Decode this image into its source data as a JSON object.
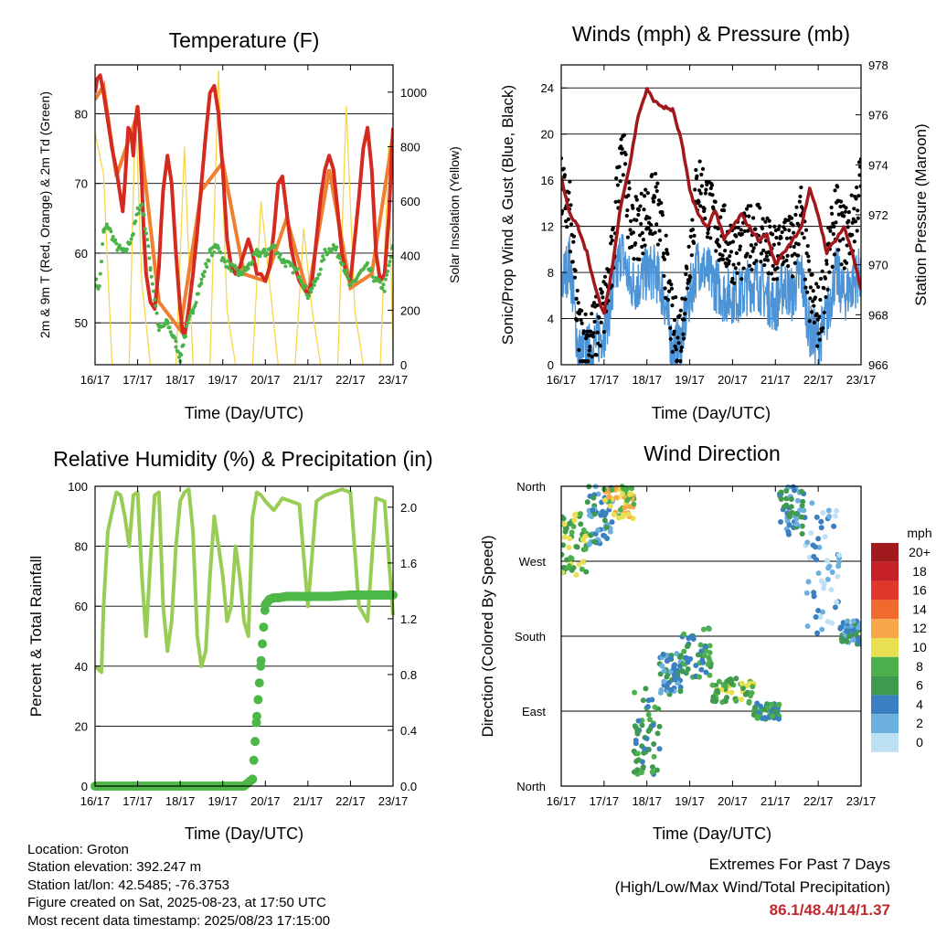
{
  "panels": {
    "temperature": {
      "title": "Temperature (F)",
      "xlabel": "Time (Day/UTC)",
      "ylabel_left": "2m & 9m T (Red, Orange) & 2m Td (Green)",
      "ylabel_right": "Solar Insolation (Yellow)"
    },
    "winds": {
      "title": "Winds (mph) & Pressure (mb)",
      "xlabel": "Time (Day/UTC)",
      "ylabel_left": "Sonic/Prop Wind & Gust (Blue, Black)",
      "ylabel_right": "Station Pressure (Maroon)"
    },
    "humidity": {
      "title": "Relative Humidity (%) & Precipitation (in)",
      "xlabel": "Time (Day/UTC)",
      "ylabel_left": "Percent & Total Rainfall"
    },
    "direction": {
      "title": "Wind Direction",
      "xlabel": "Time (Day/UTC)",
      "ylabel_left": "Direction (Colored By Speed)",
      "legend_title": "mph"
    }
  },
  "footer": {
    "location": "Location: Groton",
    "elevation": "Station elevation: 392.247 m",
    "latlon": "Station lat/lon: 42.5485; -76.3753",
    "created": "Figure created on Sat, 2025-08-23, at 17:50 UTC",
    "recent": "Most recent data timestamp: 2025/08/23 17:15:00"
  },
  "extremes": {
    "line1": "Extremes For Past 7 Days",
    "line2": "(High/Low/Max Wind/Total Precipitation)",
    "values": "86.1/48.4/14/1.37"
  },
  "colors": {
    "temp2m": "#d42a20",
    "temp9m": "#f08030",
    "dewpoint": "#4cb34a",
    "solar": "#f7d74a",
    "wind": "#4d94d6",
    "gust": "#000000",
    "pressure": "#a3171c",
    "rh": "#99cc55",
    "precip": "#4cb848",
    "extremes": "#c1272d"
  },
  "chart_data": [
    {
      "type": "line",
      "title": "Temperature (F)",
      "xlabel": "Time (Day/UTC)",
      "ylabel": "2m & 9m T (Red, Orange) & 2m Td (Green)",
      "y2label": "Solar Insolation (Yellow)",
      "xticks": [
        "16/17",
        "17/17",
        "18/17",
        "19/17",
        "20/17",
        "21/17",
        "22/17",
        "23/17"
      ],
      "xlim": [
        0,
        7
      ],
      "ylim": [
        44,
        87
      ],
      "yticks": [
        50,
        60,
        70,
        80
      ],
      "y2lim": [
        0,
        1100
      ],
      "y2ticks": [
        0,
        200,
        400,
        600,
        800,
        1000
      ],
      "grid": "horizontal",
      "series": [
        {
          "name": "2m T",
          "axis": "left",
          "x": [
            0,
            0.05,
            0.12,
            0.2,
            0.3,
            0.4,
            0.5,
            0.6,
            0.65,
            0.7,
            0.78,
            0.85,
            0.9,
            0.95,
            1.0,
            1.05,
            1.1,
            1.15,
            1.2,
            1.3,
            1.4,
            1.5,
            1.55,
            1.6,
            1.7,
            1.8,
            1.9,
            2.0,
            2.05,
            2.1,
            2.2,
            2.3,
            2.4,
            2.5,
            2.6,
            2.7,
            2.8,
            2.9,
            3.0,
            3.1,
            3.2,
            3.3,
            3.4,
            3.5,
            3.6,
            3.7,
            3.8,
            3.9,
            4.0,
            4.1,
            4.2,
            4.3,
            4.4,
            4.5,
            4.6,
            4.7,
            4.8,
            4.9,
            5.0,
            5.1,
            5.2,
            5.3,
            5.4,
            5.5,
            5.6,
            5.7,
            5.8,
            5.9,
            6.0,
            6.1,
            6.2,
            6.3,
            6.4,
            6.5,
            6.6,
            6.7,
            6.8,
            6.9,
            7.0
          ],
          "values": [
            83,
            85,
            85.5,
            83,
            79,
            75,
            72,
            68,
            66,
            70,
            78,
            77,
            74,
            79,
            81,
            77,
            70,
            62,
            57,
            53,
            52,
            58,
            64,
            69,
            74,
            70,
            60,
            52,
            49,
            48,
            52,
            57,
            63,
            70,
            77,
            83,
            84,
            80,
            72,
            62,
            58,
            57,
            58,
            60,
            62,
            60,
            57,
            57,
            56,
            58,
            63,
            70,
            71,
            66,
            61,
            58,
            56,
            55,
            54,
            56,
            62,
            68,
            72,
            74,
            72,
            66,
            60,
            57,
            56,
            62,
            68,
            75,
            78,
            72,
            60,
            56,
            57,
            65,
            78
          ]
        },
        {
          "name": "9m T",
          "axis": "left",
          "x": [
            0,
            0.2,
            0.5,
            1.0,
            1.5,
            2.0,
            2.5,
            3.0,
            3.5,
            4.0,
            4.5,
            5.0,
            5.5,
            6.0,
            6.5,
            7.0
          ],
          "values": [
            82,
            84,
            71,
            80,
            53,
            49,
            69,
            73,
            57,
            56,
            65,
            54,
            72,
            55,
            57,
            77
          ]
        },
        {
          "name": "2m Td",
          "axis": "left",
          "x": [
            0,
            0.1,
            0.2,
            0.3,
            0.5,
            0.7,
            0.9,
            1.0,
            1.1,
            1.2,
            1.3,
            1.5,
            1.7,
            1.9,
            2.0,
            2.1,
            2.3,
            2.5,
            2.7,
            2.9,
            3.0,
            3.2,
            3.4,
            3.6,
            3.8,
            4.0,
            4.2,
            4.4,
            4.6,
            4.8,
            5.0,
            5.2,
            5.4,
            5.6,
            5.8,
            6.0,
            6.2,
            6.4,
            6.6,
            6.8,
            7.0
          ],
          "values": [
            56,
            55,
            63,
            64,
            61,
            60,
            63,
            66,
            67,
            63,
            58,
            49,
            50,
            47,
            45,
            48,
            52,
            56,
            60,
            61,
            59,
            58,
            57,
            58,
            60,
            60,
            61,
            59,
            58,
            57,
            54,
            56,
            60,
            61,
            59,
            55,
            57,
            58,
            56,
            55,
            61
          ]
        },
        {
          "name": "Solar Insolation",
          "axis": "right",
          "x": [
            0,
            0.2,
            0.4,
            0.6,
            0.8,
            0.95,
            1.1,
            1.3,
            1.5,
            1.7,
            1.9,
            2.1,
            2.3,
            2.5,
            2.7,
            2.9,
            3.1,
            3.3,
            3.5,
            3.7,
            3.9,
            4.1,
            4.3,
            4.5,
            4.7,
            4.9,
            5.1,
            5.3,
            5.5,
            5.7,
            5.9,
            6.1,
            6.3,
            6.5,
            6.7,
            6.9,
            7.0
          ],
          "values": [
            850,
            700,
            0,
            0,
            0,
            950,
            300,
            0,
            0,
            0,
            0,
            800,
            0,
            0,
            0,
            1080,
            200,
            0,
            0,
            0,
            600,
            300,
            0,
            0,
            0,
            500,
            200,
            0,
            0,
            0,
            950,
            200,
            0,
            0,
            0,
            800,
            0
          ]
        }
      ]
    },
    {
      "type": "line",
      "title": "Winds (mph) & Pressure (mb)",
      "xlabel": "Time (Day/UTC)",
      "ylabel": "Sonic/Prop Wind & Gust (Blue, Black)",
      "y2label": "Station Pressure (Maroon)",
      "xticks": [
        "16/17",
        "17/17",
        "18/17",
        "19/17",
        "20/17",
        "21/17",
        "22/17",
        "23/17"
      ],
      "xlim": [
        0,
        7
      ],
      "ylim": [
        0,
        26
      ],
      "yticks": [
        0,
        4,
        8,
        12,
        16,
        20,
        24
      ],
      "y2lim": [
        966,
        978
      ],
      "y2ticks": [
        966,
        968,
        970,
        972,
        974,
        976,
        978
      ],
      "grid": "horizontal",
      "series": [
        {
          "name": "Sonic/Prop Wind",
          "axis": "left",
          "x": [
            0,
            0.2,
            0.4,
            0.6,
            0.8,
            1.0,
            1.2,
            1.4,
            1.6,
            1.8,
            2.0,
            2.2,
            2.4,
            2.6,
            2.8,
            3.0,
            3.2,
            3.4,
            3.6,
            3.8,
            4.0,
            4.2,
            4.4,
            4.6,
            4.8,
            5.0,
            5.2,
            5.4,
            5.6,
            5.8,
            6.0,
            6.2,
            6.4,
            6.6,
            6.8,
            7.0
          ],
          "values": [
            7,
            9,
            1,
            1,
            2,
            3,
            6,
            10,
            7,
            7,
            8,
            8,
            6,
            1,
            2,
            6,
            9,
            8,
            7,
            6,
            6,
            6,
            7,
            7,
            6,
            5,
            7,
            6,
            8,
            3,
            2,
            4,
            8,
            6,
            7,
            8
          ]
        },
        {
          "name": "Gust",
          "axis": "left",
          "x": [
            0,
            0.2,
            0.4,
            0.6,
            0.8,
            1.0,
            1.2,
            1.4,
            1.6,
            1.8,
            2.0,
            2.2,
            2.4,
            2.6,
            2.8,
            3.0,
            3.2,
            3.4,
            3.6,
            3.8,
            4.0,
            4.2,
            4.4,
            4.6,
            4.8,
            5.0,
            5.2,
            5.4,
            5.6,
            5.8,
            6.0,
            6.2,
            6.4,
            6.6,
            6.8,
            7.0
          ],
          "values": [
            15,
            13,
            3,
            2,
            3,
            5,
            9,
            20,
            12,
            12,
            13,
            14,
            10,
            3,
            3,
            10,
            16,
            14,
            12,
            11,
            10,
            10,
            11,
            12,
            10,
            9,
            11,
            10,
            13,
            6,
            4,
            8,
            13,
            11,
            12,
            16
          ]
        },
        {
          "name": "Station Pressure",
          "axis": "right",
          "x": [
            0,
            0.2,
            0.4,
            0.6,
            0.8,
            1.0,
            1.2,
            1.4,
            1.6,
            1.8,
            2.0,
            2.2,
            2.4,
            2.6,
            2.8,
            3.0,
            3.2,
            3.4,
            3.6,
            3.8,
            4.0,
            4.2,
            4.4,
            4.6,
            4.8,
            5.0,
            5.2,
            5.4,
            5.6,
            5.8,
            6.0,
            6.2,
            6.4,
            6.6,
            6.8,
            7.0
          ],
          "values": [
            973.5,
            972,
            971.5,
            970.5,
            969,
            968,
            970,
            972.5,
            974,
            976,
            977,
            976.5,
            976.3,
            976.2,
            975,
            973,
            972,
            971.5,
            972.2,
            971,
            971.5,
            972,
            971.5,
            971,
            971.2,
            970,
            970.5,
            971,
            971.5,
            973,
            972,
            970.5,
            971,
            971.5,
            970.5,
            969
          ]
        }
      ]
    },
    {
      "type": "line",
      "title": "Relative Humidity (%) & Precipitation (in)",
      "xlabel": "Time (Day/UTC)",
      "ylabel": "Percent & Total Rainfall",
      "xticks": [
        "16/17",
        "17/17",
        "18/17",
        "19/17",
        "20/17",
        "21/17",
        "22/17",
        "23/17"
      ],
      "xlim": [
        0,
        7
      ],
      "ylim": [
        0,
        100
      ],
      "yticks": [
        0,
        20,
        40,
        60,
        80,
        100
      ],
      "y2lim": [
        0,
        2.15
      ],
      "y2ticks": [
        0.0,
        0.4,
        0.8,
        1.2,
        1.6,
        2.0
      ],
      "grid": "horizontal",
      "series": [
        {
          "name": "Relative Humidity",
          "axis": "left",
          "x": [
            0,
            0.15,
            0.2,
            0.3,
            0.5,
            0.6,
            0.7,
            0.8,
            0.9,
            1.0,
            1.1,
            1.2,
            1.3,
            1.4,
            1.5,
            1.6,
            1.7,
            1.8,
            1.9,
            2.0,
            2.1,
            2.2,
            2.3,
            2.4,
            2.5,
            2.6,
            2.7,
            2.8,
            2.9,
            3.0,
            3.1,
            3.2,
            3.3,
            3.4,
            3.5,
            3.6,
            3.7,
            3.8,
            3.9,
            4.0,
            4.2,
            4.4,
            4.6,
            4.8,
            5.0,
            5.2,
            5.4,
            5.6,
            5.8,
            6.0,
            6.2,
            6.4,
            6.6,
            6.8,
            7.0
          ],
          "values": [
            40,
            38,
            60,
            85,
            98,
            97,
            90,
            80,
            97,
            98,
            70,
            50,
            75,
            97,
            98,
            60,
            45,
            55,
            80,
            95,
            98,
            99,
            85,
            50,
            40,
            45,
            70,
            90,
            80,
            70,
            55,
            60,
            80,
            70,
            55,
            50,
            90,
            98,
            97,
            95,
            92,
            96,
            95,
            94,
            60,
            95,
            97,
            98,
            99,
            98,
            60,
            55,
            96,
            95,
            57
          ]
        },
        {
          "name": "Total Precipitation",
          "axis": "right",
          "x": [
            0,
            0.5,
            1.0,
            1.5,
            2.0,
            2.5,
            3.0,
            3.5,
            3.7,
            3.8,
            3.9,
            4.0,
            4.1,
            4.2,
            4.3,
            4.5,
            5.0,
            5.5,
            6.0,
            6.5,
            7.0
          ],
          "values": [
            0,
            0,
            0,
            0,
            0,
            0,
            0,
            0,
            0.05,
            0.5,
            0.9,
            1.3,
            1.34,
            1.35,
            1.35,
            1.36,
            1.36,
            1.36,
            1.37,
            1.37,
            1.37
          ]
        }
      ]
    },
    {
      "type": "scatter",
      "title": "Wind Direction",
      "xlabel": "Time (Day/UTC)",
      "ylabel": "Direction (Colored By Speed)",
      "xticks": [
        "16/17",
        "17/17",
        "18/17",
        "19/17",
        "20/17",
        "21/17",
        "22/17",
        "23/17"
      ],
      "xlim": [
        0,
        7
      ],
      "yticks": [
        "North",
        "East",
        "South",
        "West",
        "North"
      ],
      "ylim": [
        0,
        360
      ],
      "grid": "horizontal",
      "legend_title": "mph",
      "legend_labels": [
        "20+",
        "18",
        "16",
        "14",
        "12",
        "10",
        "8",
        "6",
        "4",
        "2",
        "0"
      ],
      "legend_colors": [
        "#a01a1e",
        "#c42026",
        "#e0362c",
        "#f06a2e",
        "#f8a848",
        "#e8e050",
        "#4cb04c",
        "#3f9a4e",
        "#3a7fc0",
        "#6cb0e0",
        "#bde0f5"
      ],
      "legend_placement": "right",
      "clusters": [
        {
          "x_range": [
            0.0,
            0.6
          ],
          "dir_range": [
            250,
            330
          ],
          "speed": 8
        },
        {
          "x_range": [
            0.6,
            1.2
          ],
          "dir_range": [
            290,
            360
          ],
          "speed": 4
        },
        {
          "x_range": [
            1.0,
            1.7
          ],
          "dir_range": [
            320,
            360
          ],
          "speed": 10
        },
        {
          "x_range": [
            1.7,
            2.3
          ],
          "dir_range": [
            10,
            120
          ],
          "speed": 6
        },
        {
          "x_range": [
            2.3,
            2.8
          ],
          "dir_range": [
            110,
            160
          ],
          "speed": 4
        },
        {
          "x_range": [
            2.8,
            3.5
          ],
          "dir_range": [
            130,
            190
          ],
          "speed": 6
        },
        {
          "x_range": [
            3.5,
            4.5
          ],
          "dir_range": [
            100,
            130
          ],
          "speed": 8
        },
        {
          "x_range": [
            4.5,
            5.1
          ],
          "dir_range": [
            80,
            100
          ],
          "speed": 6
        },
        {
          "x_range": [
            5.1,
            5.7
          ],
          "dir_range": [
            300,
            360
          ],
          "speed": 4
        },
        {
          "x_range": [
            5.7,
            6.5
          ],
          "dir_range": [
            180,
            340
          ],
          "speed": 2
        },
        {
          "x_range": [
            6.5,
            7.0
          ],
          "dir_range": [
            170,
            200
          ],
          "speed": 4
        }
      ]
    }
  ]
}
